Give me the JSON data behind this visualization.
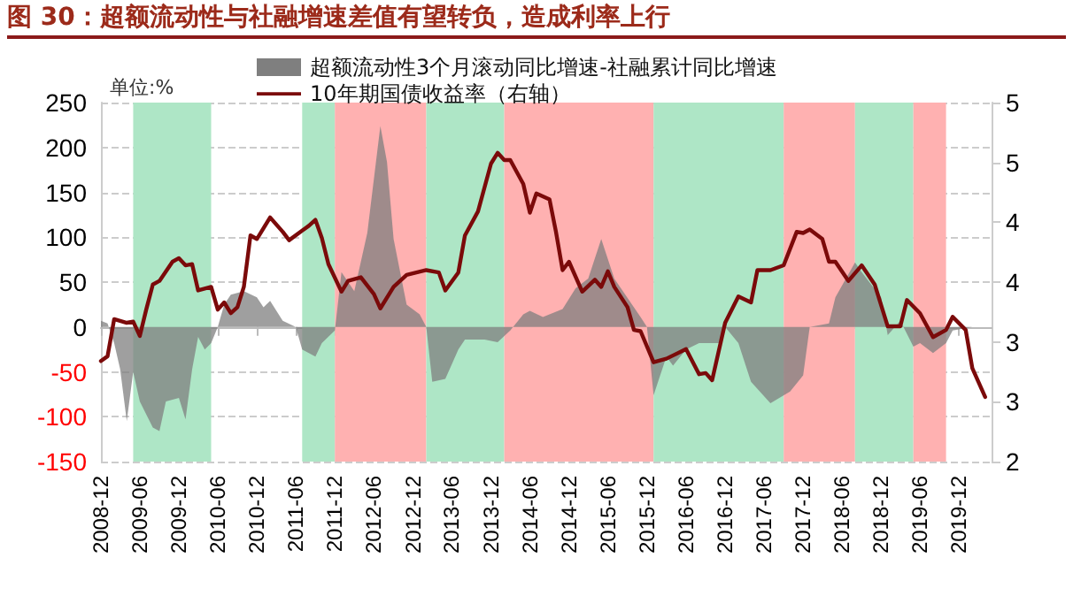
{
  "chart_data": {
    "type": "area",
    "title": "图 30：超额流动性与社融增速差值有望转负，造成利率上行",
    "annotations": [
      "单位:%"
    ],
    "xlim": [
      "2008-12",
      "2020-05"
    ],
    "xticks": [
      "2008-12",
      "2009-06",
      "2009-12",
      "2010-06",
      "2010-12",
      "2011-06",
      "2011-12",
      "2012-06",
      "2012-12",
      "2013-06",
      "2013-12",
      "2014-06",
      "2014-12",
      "2015-06",
      "2015-12",
      "2016-06",
      "2016-12",
      "2017-06",
      "2017-12",
      "2018-06",
      "2018-12",
      "2019-06",
      "2019-12"
    ],
    "ylim": [
      -150,
      250
    ],
    "yticks": [
      -150,
      -100,
      -50,
      0,
      50,
      100,
      150,
      200,
      250
    ],
    "y2lim": [
      2,
      5
    ],
    "y2ticks": [
      {
        "value": 2,
        "label": "2"
      },
      {
        "value": 2.5,
        "label": "3"
      },
      {
        "value": 3,
        "label": "3"
      },
      {
        "value": 3.5,
        "label": "4"
      },
      {
        "value": 4,
        "label": "4"
      },
      {
        "value": 4.5,
        "label": "5"
      },
      {
        "value": 5,
        "label": "5"
      }
    ],
    "grid": "y",
    "legend": "top",
    "marker": "none",
    "series": [
      {
        "name": "超额流动性3个月滚动同比增速-社融累计同比增速",
        "color": "#7f7f7f",
        "x": [
          "2008-12",
          "2009-01",
          "2009-02",
          "2009-03",
          "2009-04",
          "2009-05",
          "2009-06",
          "2009-08",
          "2009-09",
          "2009-10",
          "2009-12",
          "2010-01",
          "2010-02",
          "2010-03",
          "2010-04",
          "2010-05",
          "2010-06",
          "2010-07",
          "2010-08",
          "2010-10",
          "2010-12",
          "2011-01",
          "2011-02",
          "2011-04",
          "2011-06",
          "2011-07",
          "2011-09",
          "2011-10",
          "2011-12",
          "2012-01",
          "2012-03",
          "2012-05",
          "2012-07",
          "2012-08",
          "2012-09",
          "2012-11",
          "2013-01",
          "2013-02",
          "2013-03",
          "2013-05",
          "2013-07",
          "2013-08",
          "2013-11",
          "2014-01",
          "2014-03",
          "2014-05",
          "2014-06",
          "2014-08",
          "2014-11",
          "2015-01",
          "2015-03",
          "2015-05",
          "2015-07",
          "2015-08",
          "2015-11",
          "2015-12",
          "2016-01",
          "2016-03",
          "2016-04",
          "2016-06",
          "2016-08",
          "2016-11",
          "2016-12",
          "2017-02",
          "2017-04",
          "2017-07",
          "2017-10",
          "2017-12",
          "2018-01",
          "2018-04",
          "2018-05",
          "2018-08",
          "2018-09",
          "2018-12",
          "2019-01",
          "2019-03",
          "2019-05",
          "2019-06",
          "2019-08",
          "2019-10",
          "2019-11",
          "2020-02"
        ],
        "values": [
          7,
          4,
          -18,
          -47,
          -105,
          -50,
          -83,
          -112,
          -116,
          -83,
          -79,
          -103,
          -47,
          -11,
          -25,
          -18,
          0,
          25,
          36,
          40,
          33,
          22,
          29,
          7,
          0,
          -25,
          -33,
          -18,
          -4,
          61,
          40,
          105,
          224,
          184,
          98,
          25,
          14,
          0,
          -61,
          -58,
          -25,
          -14,
          -14,
          -17,
          -4,
          14,
          18,
          11,
          20,
          43,
          54,
          98,
          54,
          43,
          11,
          0,
          -76,
          -33,
          -43,
          -25,
          -18,
          -18,
          0,
          -18,
          -61,
          -85,
          -72,
          -54,
          0,
          4,
          33,
          72,
          61,
          33,
          -9,
          7,
          -22,
          -18,
          -29,
          -18,
          -4,
          0
        ]
      },
      {
        "name": "10年期国债收益率（右轴）",
        "type": "line",
        "axis": "y2",
        "color": "#7b0a0a",
        "x": [
          "2008-12",
          "2009-01",
          "2009-02",
          "2009-04",
          "2009-05",
          "2009-06",
          "2009-07",
          "2009-08",
          "2009-09",
          "2009-11",
          "2009-12",
          "2010-01",
          "2010-02",
          "2010-03",
          "2010-05",
          "2010-06",
          "2010-07",
          "2010-08",
          "2010-09",
          "2010-10",
          "2010-11",
          "2010-12",
          "2011-02",
          "2011-04",
          "2011-05",
          "2011-07",
          "2011-08",
          "2011-09",
          "2011-10",
          "2011-11",
          "2012-01",
          "2012-02",
          "2012-04",
          "2012-06",
          "2012-07",
          "2012-09",
          "2012-11",
          "2013-02",
          "2013-04",
          "2013-05",
          "2013-07",
          "2013-08",
          "2013-10",
          "2013-12",
          "2014-01",
          "2014-02",
          "2014-03",
          "2014-05",
          "2014-06",
          "2014-07",
          "2014-09",
          "2014-10",
          "2014-11",
          "2014-12",
          "2015-02",
          "2015-04",
          "2015-05",
          "2015-06",
          "2015-07",
          "2015-09",
          "2015-10",
          "2015-11",
          "2016-01",
          "2016-03",
          "2016-06",
          "2016-08",
          "2016-09",
          "2016-10",
          "2016-12",
          "2017-02",
          "2017-04",
          "2017-05",
          "2017-07",
          "2017-09",
          "2017-11",
          "2017-12",
          "2018-01",
          "2018-03",
          "2018-04",
          "2018-05",
          "2018-07",
          "2018-09",
          "2018-11",
          "2019-01",
          "2019-03",
          "2019-04",
          "2019-06",
          "2019-08",
          "2019-10",
          "2019-11",
          "2020-01",
          "2020-02",
          "2020-04"
        ],
        "values": [
          2.84,
          2.88,
          3.19,
          3.16,
          3.17,
          3.05,
          3.27,
          3.48,
          3.51,
          3.67,
          3.7,
          3.64,
          3.65,
          3.43,
          3.46,
          3.27,
          3.33,
          3.24,
          3.29,
          3.46,
          3.89,
          3.86,
          4.04,
          3.92,
          3.85,
          3.93,
          3.97,
          4.02,
          3.87,
          3.65,
          3.42,
          3.51,
          3.54,
          3.4,
          3.28,
          3.46,
          3.56,
          3.6,
          3.58,
          3.43,
          3.58,
          3.89,
          4.09,
          4.49,
          4.58,
          4.52,
          4.52,
          4.32,
          4.08,
          4.24,
          4.19,
          3.92,
          3.6,
          3.67,
          3.42,
          3.52,
          3.46,
          3.59,
          3.46,
          3.29,
          3.1,
          3.09,
          2.83,
          2.86,
          2.94,
          2.73,
          2.74,
          2.68,
          3.16,
          3.38,
          3.33,
          3.6,
          3.6,
          3.64,
          3.92,
          3.91,
          3.94,
          3.86,
          3.67,
          3.67,
          3.51,
          3.64,
          3.48,
          3.13,
          3.13,
          3.35,
          3.24,
          3.04,
          3.1,
          3.21,
          3.1,
          2.78,
          2.54
        ]
      }
    ],
    "bands": [
      {
        "axis": "x",
        "from": "2009-05",
        "to": "2010-05",
        "color": "#aee6c6"
      },
      {
        "axis": "x",
        "from": "2011-07",
        "to": "2011-12",
        "color": "#aee6c6"
      },
      {
        "axis": "x",
        "from": "2011-12",
        "to": "2013-02",
        "color": "#ffb1b1"
      },
      {
        "axis": "x",
        "from": "2013-02",
        "to": "2014-02",
        "color": "#aee6c6"
      },
      {
        "axis": "x",
        "from": "2014-02",
        "to": "2016-01",
        "color": "#ffb1b1"
      },
      {
        "axis": "x",
        "from": "2016-01",
        "to": "2017-09",
        "color": "#aee6c6"
      },
      {
        "axis": "x",
        "from": "2017-09",
        "to": "2018-08",
        "color": "#ffb1b1"
      },
      {
        "axis": "x",
        "from": "2018-08",
        "to": "2019-05",
        "color": "#aee6c6"
      },
      {
        "axis": "x",
        "from": "2019-05",
        "to": "2019-10",
        "color": "#ffb1b1"
      }
    ]
  }
}
